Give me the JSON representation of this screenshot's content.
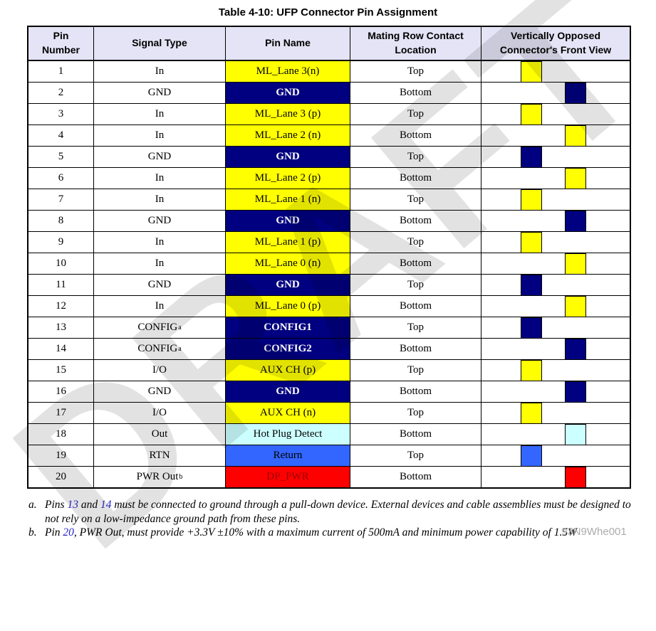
{
  "title": "Table 4-10: UFP Connector Pin Assignment",
  "watermark": "DRAFT",
  "corner_watermark": "93N9Whe001",
  "colors": {
    "header_bg": "#E4E4F6",
    "link_blue": "#2626CC",
    "styles": {
      "yellow": {
        "bg": "#FFFF00",
        "fg": "#000000",
        "bold": false
      },
      "navy": {
        "bg": "#000080",
        "fg": "#FFFFFF",
        "bold": true
      },
      "cyan": {
        "bg": "#CCFFFF",
        "fg": "#000000",
        "bold": false
      },
      "blue": {
        "bg": "#3366FF",
        "fg": "#000000",
        "bold": false
      },
      "red": {
        "bg": "#FF0000",
        "fg": "#990000",
        "bold": false
      }
    }
  },
  "table": {
    "headers": [
      "Pin Number",
      "Signal Type",
      "Pin Name",
      "Mating Row Contact Location",
      "Vertically Opposed Connector's Front View"
    ],
    "rows": [
      {
        "pin": "1",
        "signal": "In",
        "sup": "",
        "name": "ML_Lane 3(n)",
        "style": "yellow",
        "location": "Top",
        "square": "left"
      },
      {
        "pin": "2",
        "signal": "GND",
        "sup": "",
        "name": "GND",
        "style": "navy",
        "location": "Bottom",
        "square": "right"
      },
      {
        "pin": "3",
        "signal": "In",
        "sup": "",
        "name": "ML_Lane 3 (p)",
        "style": "yellow",
        "location": "Top",
        "square": "left"
      },
      {
        "pin": "4",
        "signal": "In",
        "sup": "",
        "name": "ML_Lane 2 (n)",
        "style": "yellow",
        "location": "Bottom",
        "square": "right"
      },
      {
        "pin": "5",
        "signal": "GND",
        "sup": "",
        "name": "GND",
        "style": "navy",
        "location": "Top",
        "square": "left"
      },
      {
        "pin": "6",
        "signal": "In",
        "sup": "",
        "name": "ML_Lane 2 (p)",
        "style": "yellow",
        "location": "Bottom",
        "square": "right"
      },
      {
        "pin": "7",
        "signal": "In",
        "sup": "",
        "name": "ML_Lane 1 (n)",
        "style": "yellow",
        "location": "Top",
        "square": "left"
      },
      {
        "pin": "8",
        "signal": "GND",
        "sup": "",
        "name": "GND",
        "style": "navy",
        "location": "Bottom",
        "square": "right"
      },
      {
        "pin": "9",
        "signal": "In",
        "sup": "",
        "name": "ML_Lane 1 (p)",
        "style": "yellow",
        "location": "Top",
        "square": "left"
      },
      {
        "pin": "10",
        "signal": "In",
        "sup": "",
        "name": "ML_Lane 0 (n)",
        "style": "yellow",
        "location": "Bottom",
        "square": "right"
      },
      {
        "pin": "11",
        "signal": "GND",
        "sup": "",
        "name": "GND",
        "style": "navy",
        "location": "Top",
        "square": "left"
      },
      {
        "pin": "12",
        "signal": "In",
        "sup": "",
        "name": "ML_Lane 0 (p)",
        "style": "yellow",
        "location": "Bottom",
        "square": "right"
      },
      {
        "pin": "13",
        "signal": "CONFIG",
        "sup": "a",
        "name": "CONFIG1",
        "style": "navy",
        "location": "Top",
        "square": "left"
      },
      {
        "pin": "14",
        "signal": "CONFIG",
        "sup": "a",
        "name": "CONFIG2",
        "style": "navy",
        "location": "Bottom",
        "square": "right"
      },
      {
        "pin": "15",
        "signal": "I/O",
        "sup": "",
        "name": "AUX CH (p)",
        "style": "yellow",
        "location": "Top",
        "square": "left"
      },
      {
        "pin": "16",
        "signal": "GND",
        "sup": "",
        "name": "GND",
        "style": "navy",
        "location": "Bottom",
        "square": "right"
      },
      {
        "pin": "17",
        "signal": "I/O",
        "sup": "",
        "name": "AUX CH (n)",
        "style": "yellow",
        "location": "Top",
        "square": "left"
      },
      {
        "pin": "18",
        "signal": "Out",
        "sup": "",
        "name": "Hot Plug Detect",
        "style": "cyan",
        "location": "Bottom",
        "square": "right"
      },
      {
        "pin": "19",
        "signal": "RTN",
        "sup": "",
        "name": "Return",
        "style": "blue",
        "location": "Top",
        "square": "left"
      },
      {
        "pin": "20",
        "signal": "PWR Out",
        "sup": "b",
        "name": "DP_PWR",
        "style": "red",
        "location": "Bottom",
        "square": "right"
      }
    ]
  },
  "footnotes": [
    {
      "label": "a.",
      "segments": [
        {
          "t": "Pins "
        },
        {
          "t": "13",
          "link": true
        },
        {
          "t": " and "
        },
        {
          "t": "14",
          "link": true
        },
        {
          "t": " must be connected to ground through a pull-down device. External devices and cable assemblies must be designed to not rely on a low-impedance ground path from these pins."
        }
      ]
    },
    {
      "label": "b.",
      "segments": [
        {
          "t": "Pin "
        },
        {
          "t": "20",
          "link": true
        },
        {
          "t": ", PWR Out, must provide +3.3V ±10% with a maximum current of 500mA and minimum power capability of 1.5W"
        }
      ]
    }
  ]
}
